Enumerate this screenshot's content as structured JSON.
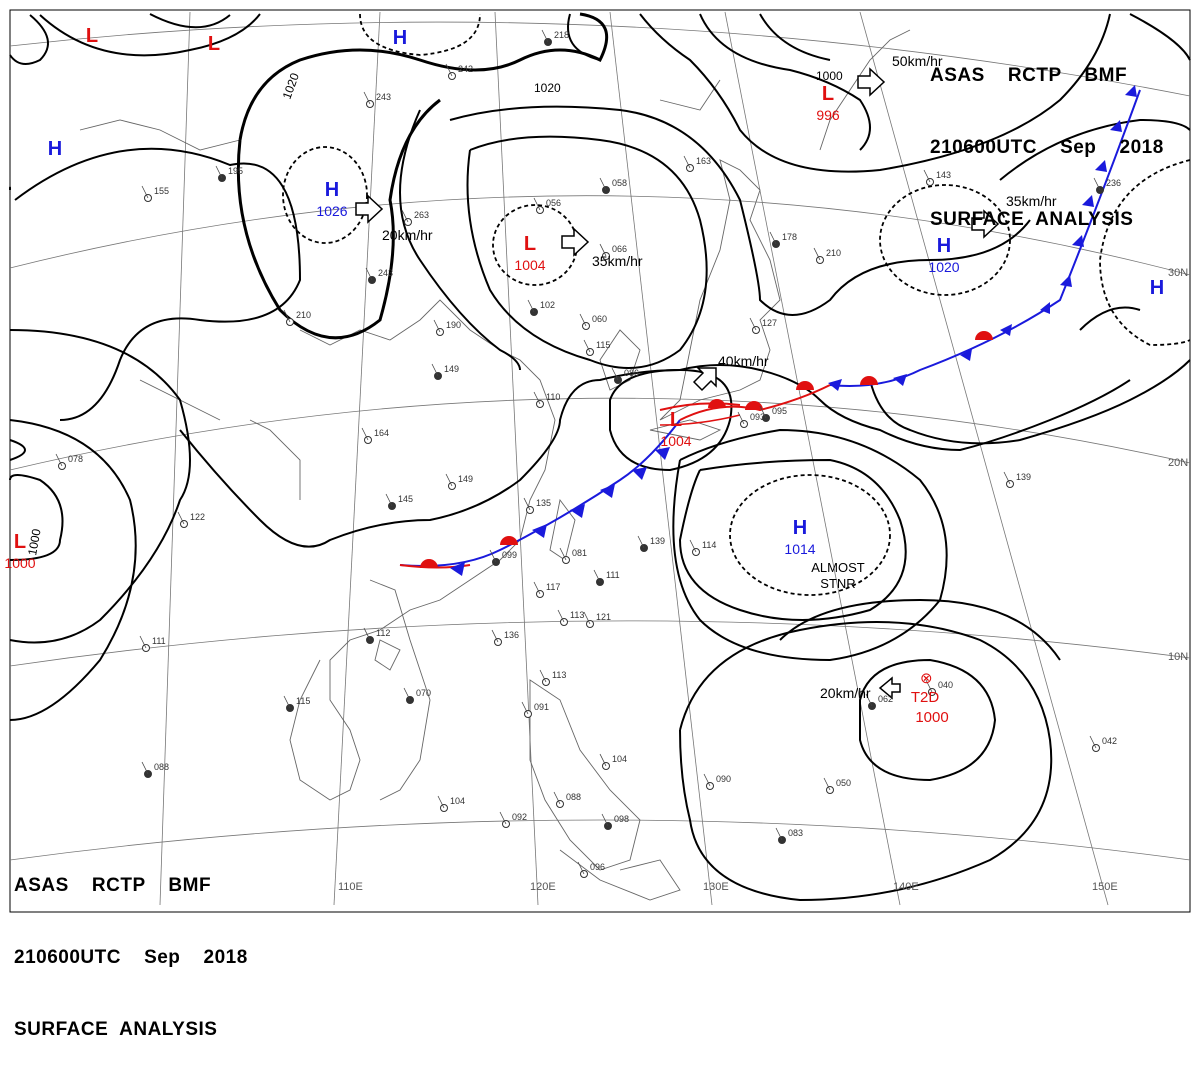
{
  "header": {
    "line1": "ASAS    RCTP    BMF",
    "line2": "210600UTC    Sep    2018",
    "line3": "SURFACE  ANALYSIS"
  },
  "grid": {
    "lon_labels": [
      "110E",
      "120E",
      "130E",
      "140E",
      "150E"
    ],
    "lat_labels": [
      "30N",
      "20N",
      "10N"
    ]
  },
  "pressure_centers": [
    {
      "type": "H",
      "pressure": "1026",
      "color": "#1a1adc"
    },
    {
      "type": "L",
      "pressure": "1004",
      "color": "#e01010"
    },
    {
      "type": "L",
      "pressure": "996",
      "color": "#e01010"
    },
    {
      "type": "H",
      "pressure": "1020",
      "color": "#1a1adc"
    },
    {
      "type": "L",
      "pressure": "1004",
      "color": "#e01010"
    },
    {
      "type": "H",
      "pressure": "1014",
      "color": "#1a1adc"
    },
    {
      "type": "L",
      "pressure": "1000",
      "color": "#e01010"
    },
    {
      "type": "H",
      "pressure": "",
      "color": "#1a1adc"
    },
    {
      "type": "L",
      "pressure": "",
      "color": "#e01010"
    },
    {
      "type": "L",
      "pressure": "",
      "color": "#e01010"
    },
    {
      "type": "H",
      "pressure": "",
      "color": "#1a1adc"
    },
    {
      "type": "H",
      "pressure": "",
      "color": "#1a1adc"
    }
  ],
  "motion_labels": [
    "20km/hr",
    "35km/hr",
    "50km/hr",
    "35km/hr",
    "40km/hr",
    "20km/hr"
  ],
  "isobar_labels": [
    "1020",
    "1020",
    "1000",
    "1000"
  ],
  "storm": {
    "label": "T2D",
    "pressure": "1000",
    "color": "#e01010"
  },
  "note": "ALMOST\nSTNR",
  "station_values": [
    "218",
    "242",
    "243",
    "195",
    "155",
    "263",
    "243",
    "210",
    "190",
    "149",
    "164",
    "149",
    "145",
    "122",
    "078",
    "058",
    "056",
    "066",
    "102",
    "060",
    "163",
    "178",
    "210",
    "143",
    "236",
    "127",
    "115",
    "086",
    "110",
    "093",
    "095",
    "139",
    "135",
    "099",
    "081",
    "117",
    "111",
    "113",
    "121",
    "139",
    "114",
    "136",
    "112",
    "113",
    "091",
    "070",
    "104",
    "088",
    "098",
    "096",
    "092",
    "088",
    "104",
    "111",
    "115",
    "090",
    "050",
    "062",
    "040",
    "042",
    "083",
    "067"
  ]
}
